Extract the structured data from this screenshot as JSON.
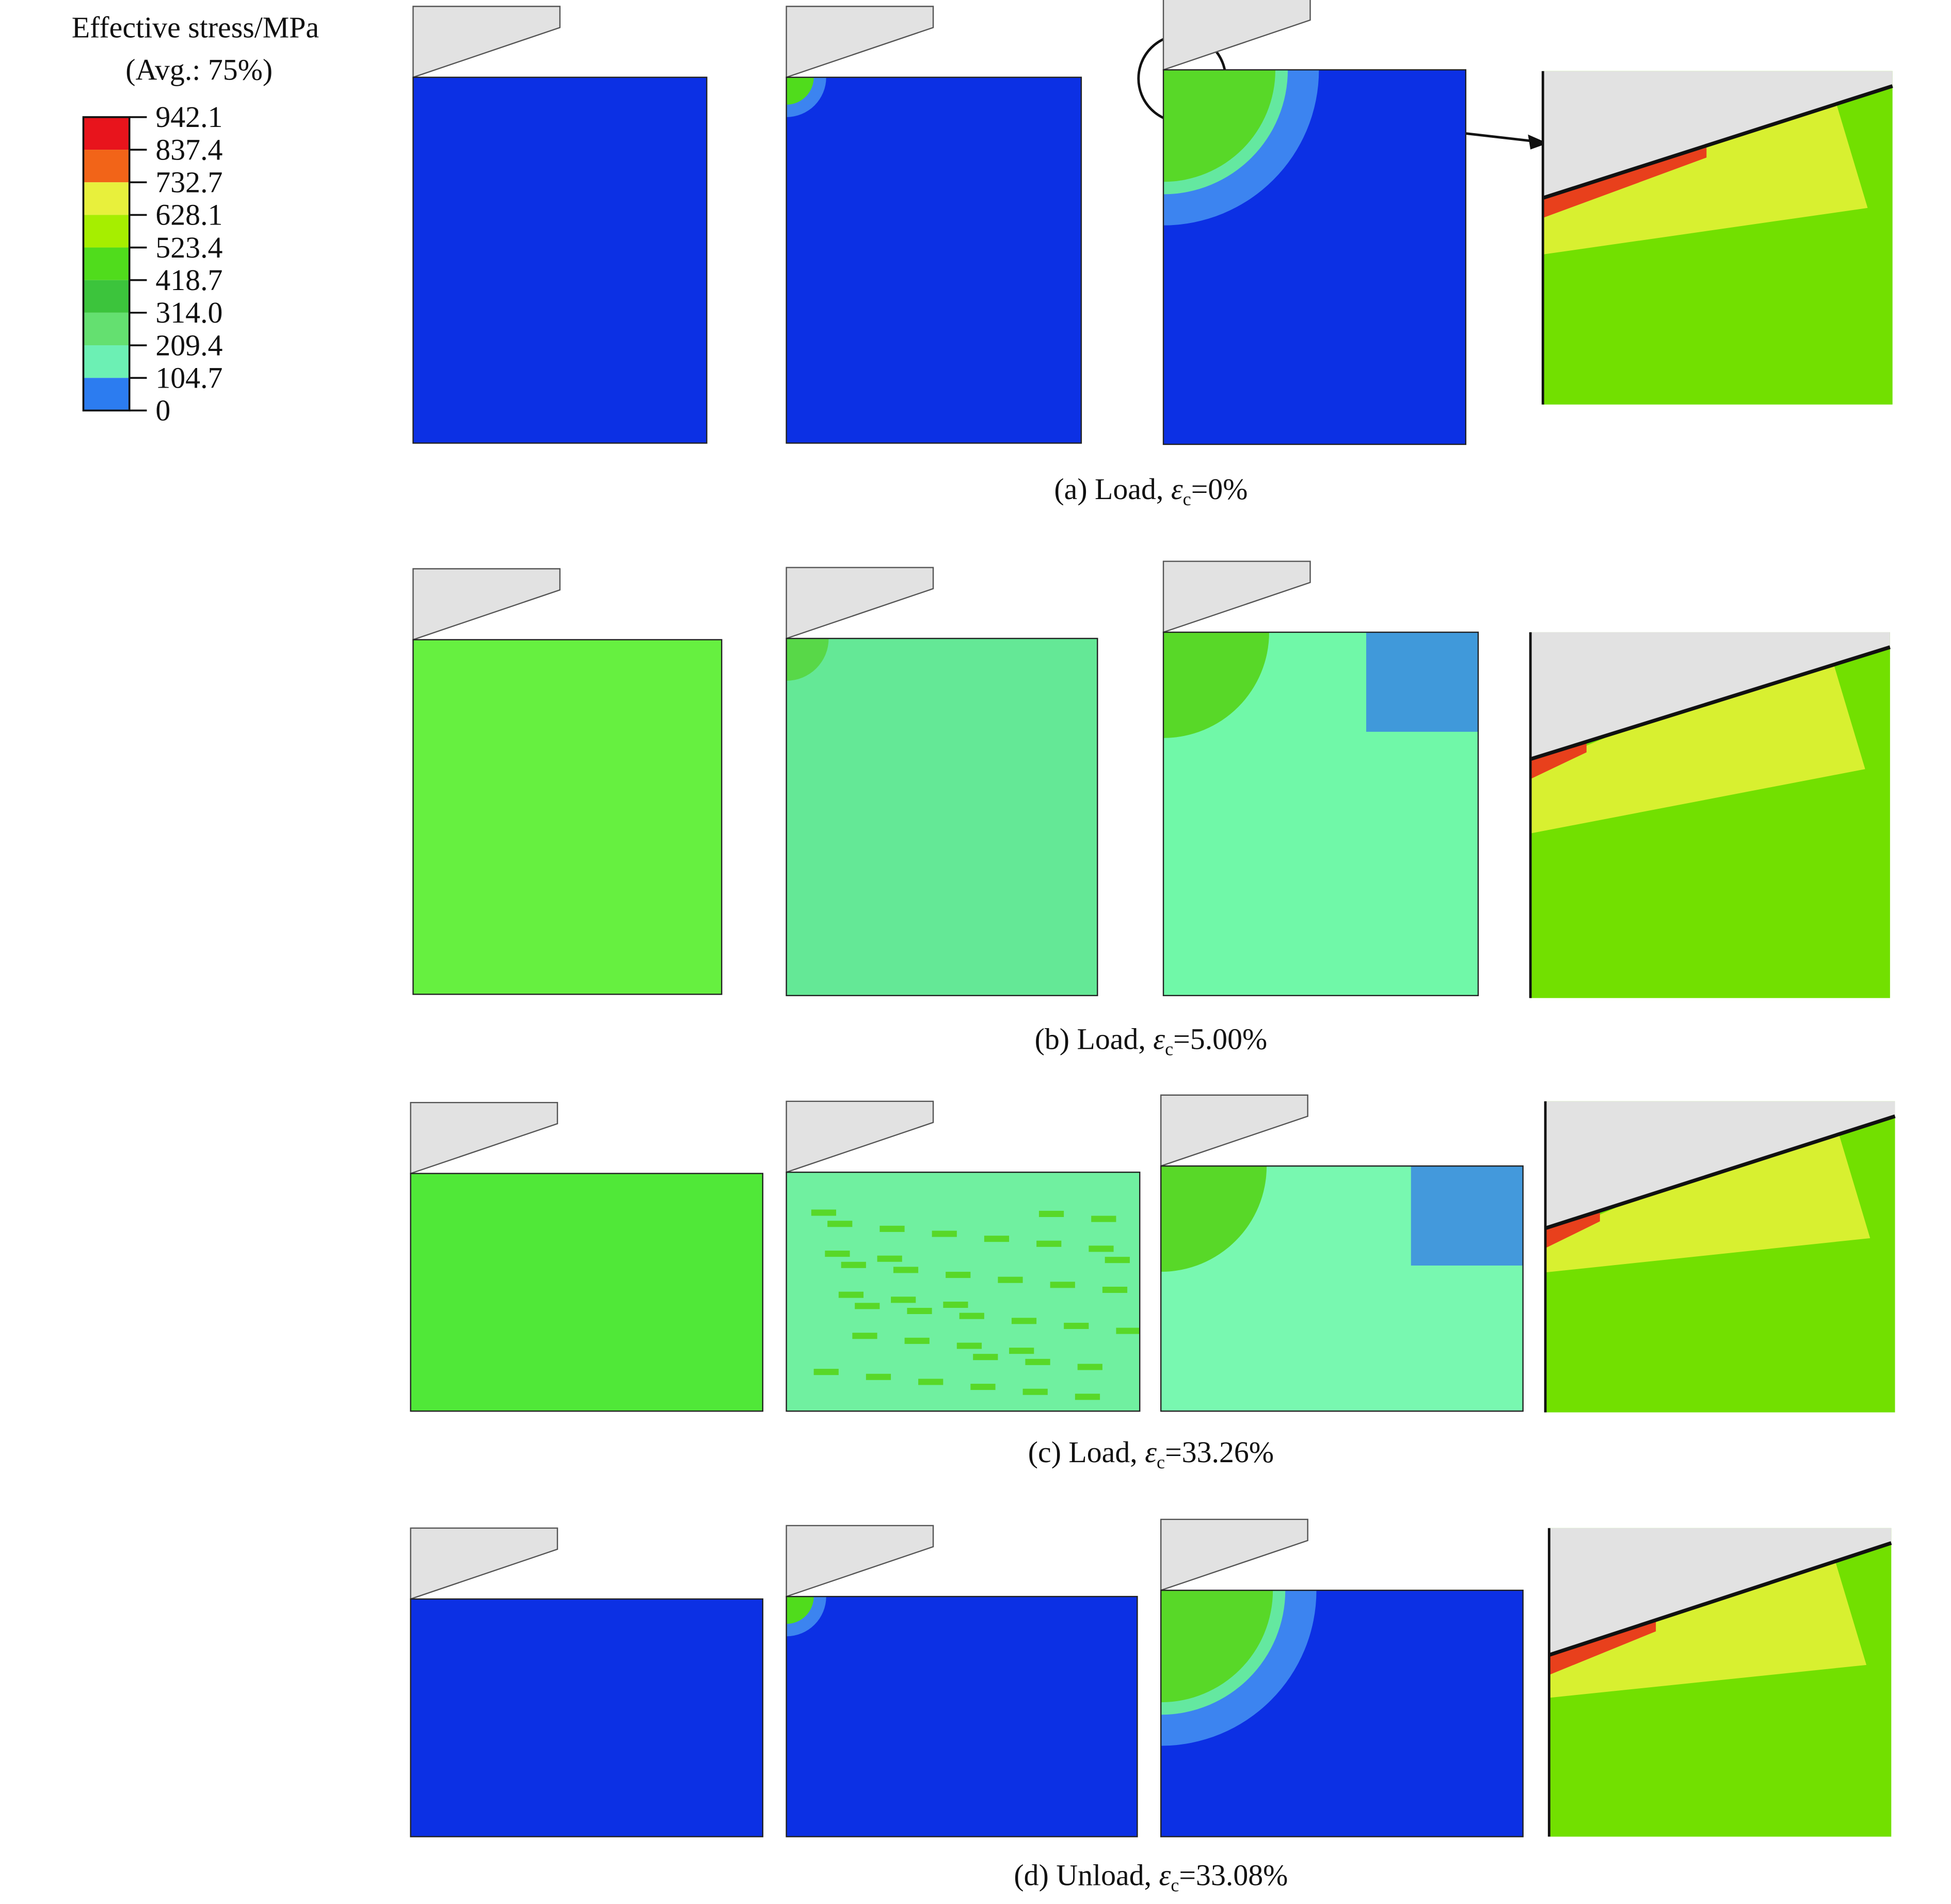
{
  "legend": {
    "title": "Effective stress/MPa",
    "subtitle": "(Avg.: 75%)",
    "levels": [
      "942.1",
      "837.4",
      "732.7",
      "628.1",
      "523.4",
      "418.7",
      "314.0",
      "209.4",
      "104.7",
      "0"
    ],
    "colors": [
      "#e8141c",
      "#f26418",
      "#e8f03c",
      "#a6ee00",
      "#50dc1c",
      "#3cc43c",
      "#64e070",
      "#6cf0b4",
      "#2c7cf0",
      "#0c30e4"
    ]
  },
  "captions": [
    {
      "prefix": "(a) Load, ",
      "symbol": "ε",
      "sub": "c",
      "suffix": "=0%"
    },
    {
      "prefix": "(b) Load, ",
      "symbol": "ε",
      "sub": "c",
      "suffix": "=5.00%"
    },
    {
      "prefix": "(c) Load, ",
      "symbol": "ε",
      "sub": "c",
      "suffix": "=33.26%"
    },
    {
      "prefix": "(d) Unload, ",
      "symbol": "ε",
      "sub": "c",
      "suffix": "=33.08%"
    }
  ]
}
